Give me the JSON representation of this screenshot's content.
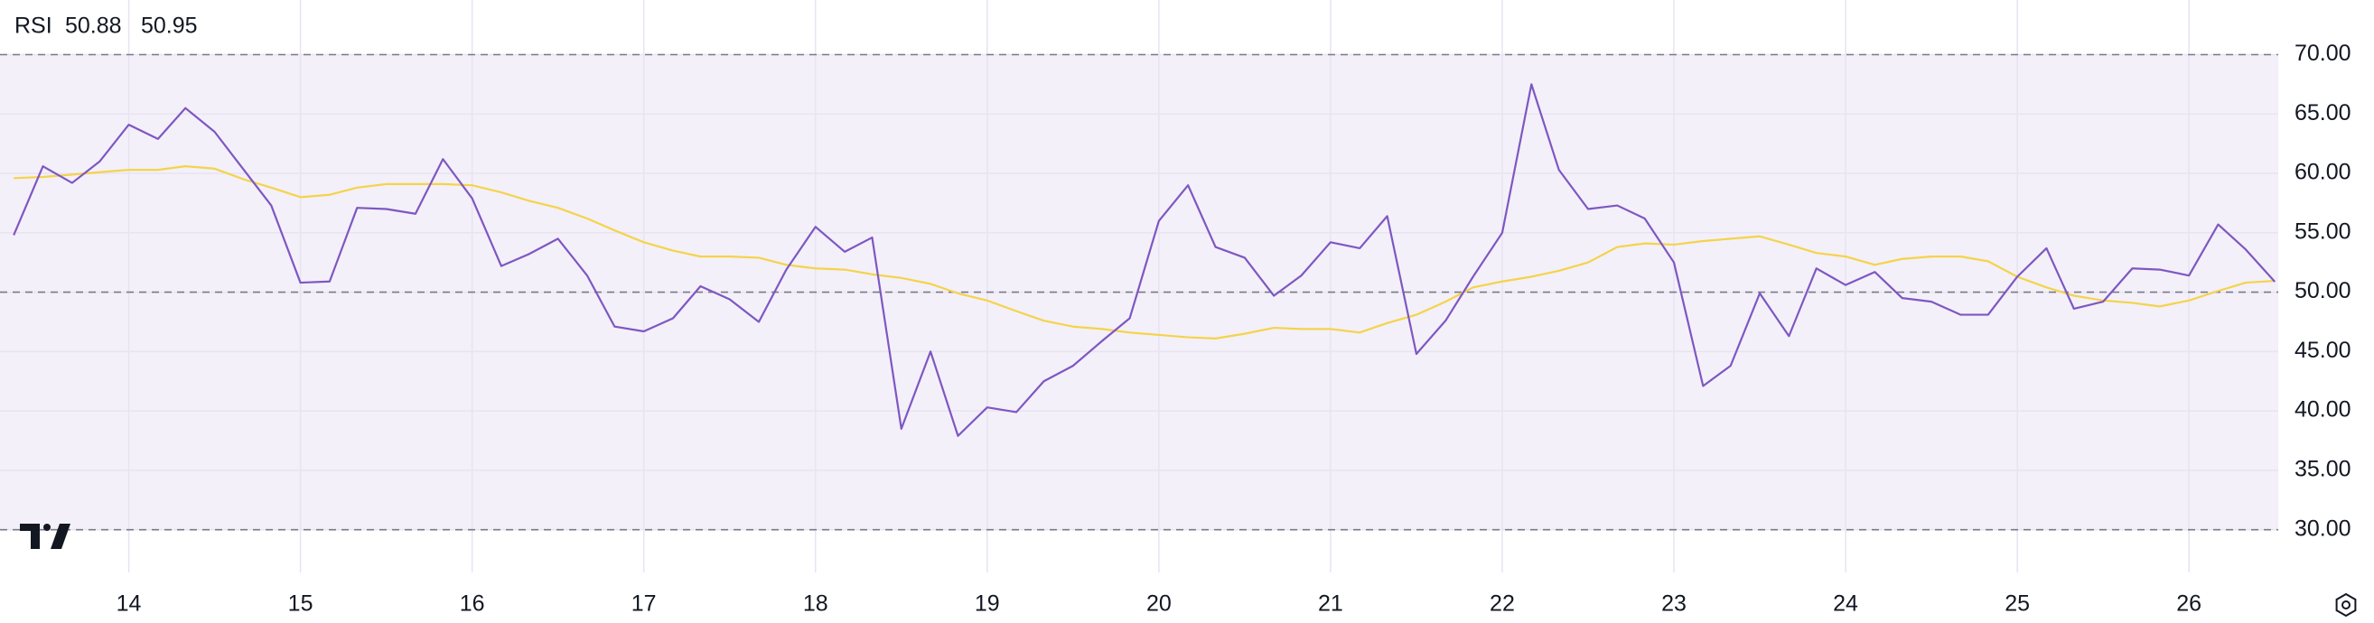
{
  "chart_data": {
    "type": "line",
    "title": "RSI",
    "x": [
      13.33,
      13.5,
      13.67,
      13.83,
      14,
      14.17,
      14.33,
      14.5,
      14.67,
      14.83,
      15,
      15.17,
      15.33,
      15.5,
      15.67,
      15.83,
      16,
      16.17,
      16.33,
      16.5,
      16.67,
      16.83,
      17,
      17.17,
      17.33,
      17.5,
      17.67,
      17.83,
      18,
      18.17,
      18.33,
      18.5,
      18.67,
      18.83,
      19,
      19.17,
      19.33,
      19.5,
      19.67,
      19.83,
      20,
      20.17,
      20.33,
      20.5,
      20.67,
      20.83,
      21,
      21.17,
      21.33,
      21.5,
      21.67,
      21.83,
      22,
      22.17,
      22.33,
      22.5,
      22.67,
      22.83,
      23,
      23.17,
      23.33,
      23.5,
      23.67,
      23.83,
      24,
      24.17,
      24.33,
      24.5,
      24.67,
      24.83,
      25,
      25.17,
      25.33,
      25.5,
      25.67,
      25.83,
      26,
      26.17,
      26.33,
      26.5
    ],
    "series": [
      {
        "color": "#7e57c2",
        "values": [
          54.8,
          60.6,
          59.2,
          61.0,
          64.1,
          62.9,
          65.5,
          63.5,
          60.3,
          57.3,
          50.8,
          50.9,
          57.1,
          57.0,
          56.6,
          61.2,
          57.9,
          52.2,
          53.2,
          54.5,
          51.4,
          47.1,
          46.7,
          47.8,
          50.5,
          49.4,
          47.5,
          51.9,
          55.5,
          53.4,
          54.6,
          38.5,
          45.0,
          37.9,
          40.3,
          39.9,
          42.5,
          43.8,
          45.9,
          47.8,
          56.0,
          59.0,
          53.8,
          52.9,
          49.7,
          51.4,
          54.2,
          53.7,
          56.4,
          44.8,
          47.6,
          51.3,
          55.0,
          67.5,
          60.3,
          57.0,
          57.3,
          56.2,
          52.5,
          42.1,
          43.8,
          49.9,
          46.3,
          52.0,
          50.6,
          51.7,
          49.5,
          49.2,
          48.1,
          48.1,
          51.3,
          53.7,
          48.6,
          49.2,
          52.0,
          51.9,
          51.4,
          55.7,
          53.6,
          50.88
        ]
      },
      {
        "color": "#f5d34a",
        "values": [
          59.6,
          59.7,
          59.9,
          60.1,
          60.3,
          60.3,
          60.6,
          60.4,
          59.5,
          58.8,
          58.0,
          58.2,
          58.8,
          59.1,
          59.1,
          59.1,
          59.0,
          58.4,
          57.7,
          57.1,
          56.2,
          55.2,
          54.2,
          53.5,
          53.0,
          53.0,
          52.9,
          52.3,
          52.0,
          51.9,
          51.5,
          51.2,
          50.7,
          49.9,
          49.3,
          48.4,
          47.6,
          47.1,
          46.9,
          46.6,
          46.4,
          46.2,
          46.1,
          46.5,
          47.0,
          46.9,
          46.9,
          46.6,
          47.4,
          48.1,
          49.2,
          50.4,
          50.9,
          51.3,
          51.8,
          52.5,
          53.8,
          54.1,
          54.0,
          54.3,
          54.5,
          54.7,
          54.0,
          53.3,
          53.0,
          52.3,
          52.8,
          53.0,
          53.0,
          52.6,
          51.3,
          50.4,
          49.7,
          49.3,
          49.1,
          48.8,
          49.3,
          50.1,
          50.8,
          50.95
        ]
      }
    ],
    "xlim": [
      13.25,
      26.52
    ],
    "xticks": [
      14,
      15,
      16,
      17,
      18,
      19,
      20,
      21,
      22,
      23,
      24,
      25,
      26
    ],
    "ylim": [
      26.4,
      74.6
    ],
    "yticks": [
      {
        "value": 30,
        "label": "30.00"
      },
      {
        "value": 35,
        "label": "35.00"
      },
      {
        "value": 40,
        "label": "40.00"
      },
      {
        "value": 45,
        "label": "45.00"
      },
      {
        "value": 50,
        "label": "50.00"
      },
      {
        "value": 55,
        "label": "55.00"
      },
      {
        "value": 60,
        "label": "60.00"
      },
      {
        "value": 65,
        "label": "65.00"
      },
      {
        "value": 70,
        "label": "70.00"
      }
    ],
    "band_lines": [
      70,
      50,
      30
    ],
    "band_color": "#7e57c2",
    "grid": true
  }
}
